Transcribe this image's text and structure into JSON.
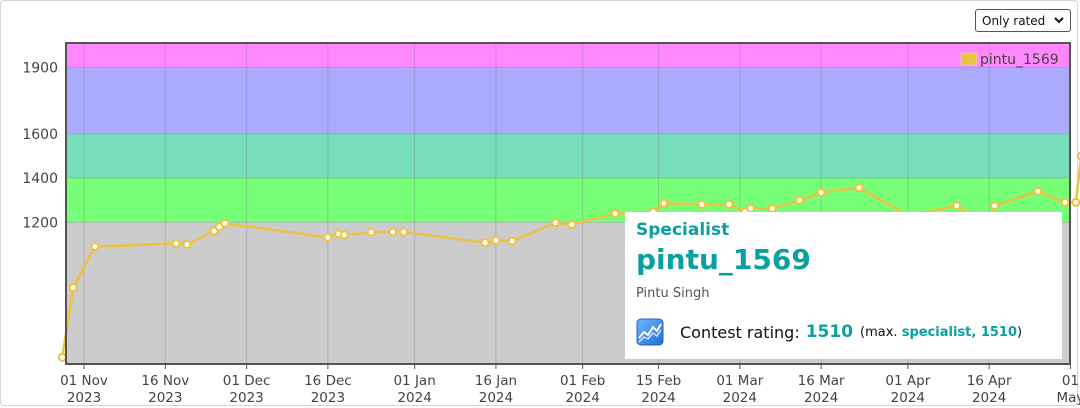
{
  "filter": {
    "selected": "Only rated"
  },
  "chart_data": {
    "type": "line",
    "ylim": [
      560,
      2010
    ],
    "yticks": [
      1200,
      1400,
      1600,
      1900
    ],
    "bands": [
      {
        "from": 560,
        "to": 1200,
        "color": "#cccccc"
      },
      {
        "from": 1200,
        "to": 1400,
        "color": "#77ff77"
      },
      {
        "from": 1400,
        "to": 1600,
        "color": "#77ddbb"
      },
      {
        "from": 1600,
        "to": 1900,
        "color": "#aaaaff"
      },
      {
        "from": 1900,
        "to": 2010,
        "color": "#ff88ff"
      }
    ],
    "xticks": [
      {
        "date": "2023-11-01",
        "line1": "01 Nov",
        "line2": "2023"
      },
      {
        "date": "2023-11-16",
        "line1": "16 Nov",
        "line2": "2023"
      },
      {
        "date": "2023-12-01",
        "line1": "01 Dec",
        "line2": "2023"
      },
      {
        "date": "2023-12-16",
        "line1": "16 Dec",
        "line2": "2023"
      },
      {
        "date": "2024-01-01",
        "line1": "01 Jan",
        "line2": "2024"
      },
      {
        "date": "2024-01-16",
        "line1": "16 Jan",
        "line2": "2024"
      },
      {
        "date": "2024-02-01",
        "line1": "01 Feb",
        "line2": "2024"
      },
      {
        "date": "2024-02-15",
        "line1": "15 Feb",
        "line2": "2024"
      },
      {
        "date": "2024-03-01",
        "line1": "01 Mar",
        "line2": "2024"
      },
      {
        "date": "2024-03-16",
        "line1": "16 Mar",
        "line2": "2024"
      },
      {
        "date": "2024-04-01",
        "line1": "01 Apr",
        "line2": "2024"
      },
      {
        "date": "2024-04-16",
        "line1": "16 Apr",
        "line2": "2024"
      },
      {
        "date": "2024-05-01",
        "line1": "01",
        "line2": "May"
      }
    ],
    "series": [
      {
        "name": "pintu_1569",
        "color": "#edc240",
        "x": [
          "2023-10-28",
          "2023-10-30",
          "2023-11-03",
          "2023-11-18",
          "2023-11-20",
          "2023-11-25",
          "2023-11-26",
          "2023-11-27",
          "2023-12-16",
          "2023-12-18",
          "2023-12-19",
          "2023-12-24",
          "2023-12-28",
          "2023-12-30",
          "2024-01-14",
          "2024-01-16",
          "2024-01-19",
          "2024-01-27",
          "2024-01-30",
          "2024-02-07",
          "2024-02-14",
          "2024-02-16",
          "2024-02-23",
          "2024-02-28",
          "2024-03-02",
          "2024-03-03",
          "2024-03-07",
          "2024-03-12",
          "2024-03-16",
          "2024-03-23",
          "2024-04-01",
          "2024-04-10",
          "2024-04-12",
          "2024-04-16",
          "2024-04-17",
          "2024-04-25",
          "2024-04-30",
          "2024-05-02",
          "2024-05-03",
          "2024-05-05"
        ],
        "y": [
          590,
          905,
          1090,
          1105,
          1100,
          1160,
          1180,
          1195,
          1132,
          1148,
          1143,
          1155,
          1156,
          1156,
          1108,
          1118,
          1115,
          1198,
          1190,
          1240,
          1247,
          1286,
          1281,
          1281,
          1248,
          1263,
          1262,
          1300,
          1335,
          1356,
          1230,
          1275,
          1237,
          1215,
          1275,
          1340,
          1290,
          1290,
          1500,
          1510
        ]
      }
    ],
    "highlight": {
      "date": "2024-05-05",
      "value": 1510
    }
  },
  "tooltip": {
    "rank": "Specialist",
    "handle": "pintu_1569",
    "name": "Pintu Singh",
    "rating_label": "Contest rating:",
    "rating_value": "1510",
    "max_open": "(max.",
    "max_rank_value": "specialist, 1510",
    "max_close": ")"
  }
}
